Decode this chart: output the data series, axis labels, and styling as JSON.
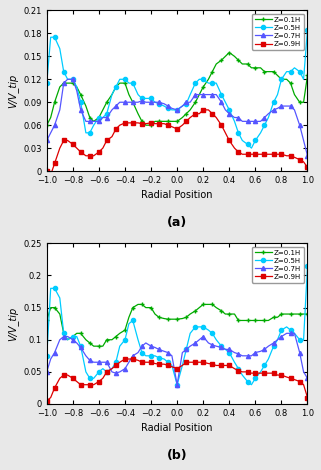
{
  "subplot_a": {
    "title": "(a)",
    "ylabel": "V/V_tip",
    "xlabel": "Radial Position",
    "ylim": [
      0,
      0.21
    ],
    "yticks": [
      0,
      0.03,
      0.06,
      0.09,
      0.12,
      0.15,
      0.18,
      0.21
    ],
    "xlim": [
      -1,
      1
    ],
    "xticks": [
      -1,
      -0.8,
      -0.6,
      -0.4,
      -0.2,
      0,
      0.2,
      0.4,
      0.6,
      0.8,
      1
    ],
    "series": [
      {
        "label": "Z=0.1H",
        "color": "#00aa00",
        "marker": "+",
        "x": [
          -1.0,
          -0.97,
          -0.94,
          -0.9,
          -0.87,
          -0.84,
          -0.8,
          -0.77,
          -0.74,
          -0.7,
          -0.67,
          -0.64,
          -0.6,
          -0.57,
          -0.54,
          -0.5,
          -0.47,
          -0.44,
          -0.4,
          -0.37,
          -0.34,
          -0.3,
          -0.27,
          -0.24,
          -0.2,
          -0.17,
          -0.14,
          -0.1,
          -0.07,
          -0.04,
          0.0,
          0.04,
          0.07,
          0.1,
          0.14,
          0.17,
          0.2,
          0.24,
          0.27,
          0.3,
          0.34,
          0.37,
          0.4,
          0.44,
          0.47,
          0.5,
          0.54,
          0.57,
          0.6,
          0.64,
          0.67,
          0.7,
          0.74,
          0.77,
          0.8,
          0.84,
          0.87,
          0.9,
          0.94,
          0.97,
          1.0
        ],
        "y": [
          0.06,
          0.07,
          0.09,
          0.11,
          0.115,
          0.115,
          0.115,
          0.11,
          0.1,
          0.085,
          0.07,
          0.065,
          0.07,
          0.08,
          0.09,
          0.1,
          0.11,
          0.115,
          0.115,
          0.1,
          0.09,
          0.075,
          0.065,
          0.06,
          0.06,
          0.065,
          0.065,
          0.065,
          0.065,
          0.065,
          0.065,
          0.07,
          0.075,
          0.08,
          0.09,
          0.1,
          0.11,
          0.12,
          0.13,
          0.14,
          0.145,
          0.15,
          0.155,
          0.15,
          0.145,
          0.14,
          0.14,
          0.135,
          0.135,
          0.135,
          0.13,
          0.13,
          0.13,
          0.125,
          0.12,
          0.12,
          0.115,
          0.1,
          0.09,
          0.09,
          0.125
        ]
      },
      {
        "label": "Z=0.5H",
        "color": "#00ccff",
        "marker": "o",
        "x": [
          -1.0,
          -0.97,
          -0.94,
          -0.9,
          -0.87,
          -0.84,
          -0.8,
          -0.77,
          -0.74,
          -0.7,
          -0.67,
          -0.64,
          -0.6,
          -0.57,
          -0.54,
          -0.5,
          -0.47,
          -0.44,
          -0.4,
          -0.37,
          -0.34,
          -0.3,
          -0.27,
          -0.24,
          -0.2,
          -0.17,
          -0.14,
          -0.1,
          -0.07,
          -0.04,
          0.0,
          0.04,
          0.07,
          0.1,
          0.14,
          0.17,
          0.2,
          0.24,
          0.27,
          0.3,
          0.34,
          0.37,
          0.4,
          0.44,
          0.47,
          0.5,
          0.54,
          0.57,
          0.6,
          0.64,
          0.67,
          0.7,
          0.74,
          0.77,
          0.8,
          0.84,
          0.87,
          0.9,
          0.94,
          0.97,
          1.0
        ],
        "y": [
          0.115,
          0.175,
          0.175,
          0.16,
          0.13,
          0.12,
          0.12,
          0.11,
          0.09,
          0.05,
          0.05,
          0.06,
          0.07,
          0.07,
          0.075,
          0.1,
          0.11,
          0.12,
          0.12,
          0.115,
          0.115,
          0.1,
          0.095,
          0.095,
          0.095,
          0.09,
          0.088,
          0.085,
          0.082,
          0.08,
          0.08,
          0.085,
          0.088,
          0.1,
          0.115,
          0.12,
          0.12,
          0.115,
          0.115,
          0.115,
          0.1,
          0.09,
          0.08,
          0.065,
          0.05,
          0.04,
          0.035,
          0.03,
          0.04,
          0.05,
          0.06,
          0.07,
          0.09,
          0.1,
          0.12,
          0.13,
          0.13,
          0.135,
          0.13,
          0.12,
          0.185
        ]
      },
      {
        "label": "Z=0.7H",
        "color": "#5555ff",
        "marker": "^",
        "x": [
          -1.0,
          -0.97,
          -0.94,
          -0.9,
          -0.87,
          -0.84,
          -0.8,
          -0.77,
          -0.74,
          -0.7,
          -0.67,
          -0.64,
          -0.6,
          -0.57,
          -0.54,
          -0.5,
          -0.47,
          -0.44,
          -0.4,
          -0.37,
          -0.34,
          -0.3,
          -0.27,
          -0.24,
          -0.2,
          -0.17,
          -0.14,
          -0.1,
          -0.07,
          -0.04,
          0.0,
          0.04,
          0.07,
          0.1,
          0.14,
          0.17,
          0.2,
          0.24,
          0.27,
          0.3,
          0.34,
          0.37,
          0.4,
          0.44,
          0.47,
          0.5,
          0.54,
          0.57,
          0.6,
          0.64,
          0.67,
          0.7,
          0.74,
          0.77,
          0.8,
          0.84,
          0.87,
          0.9,
          0.94,
          0.97,
          1.0
        ],
        "y": [
          0.04,
          0.05,
          0.06,
          0.08,
          0.115,
          0.12,
          0.12,
          0.105,
          0.08,
          0.065,
          0.065,
          0.065,
          0.065,
          0.07,
          0.07,
          0.08,
          0.085,
          0.09,
          0.09,
          0.09,
          0.09,
          0.09,
          0.092,
          0.09,
          0.09,
          0.09,
          0.09,
          0.088,
          0.085,
          0.082,
          0.08,
          0.085,
          0.09,
          0.09,
          0.1,
          0.1,
          0.1,
          0.1,
          0.1,
          0.1,
          0.09,
          0.08,
          0.075,
          0.07,
          0.07,
          0.065,
          0.065,
          0.065,
          0.065,
          0.065,
          0.07,
          0.075,
          0.08,
          0.082,
          0.085,
          0.085,
          0.085,
          0.08,
          0.06,
          0.04,
          0.02
        ]
      },
      {
        "label": "Z=0.9H",
        "color": "#dd0000",
        "marker": "s",
        "x": [
          -1.0,
          -0.97,
          -0.94,
          -0.9,
          -0.87,
          -0.84,
          -0.8,
          -0.77,
          -0.74,
          -0.7,
          -0.67,
          -0.64,
          -0.6,
          -0.57,
          -0.54,
          -0.5,
          -0.47,
          -0.44,
          -0.4,
          -0.37,
          -0.34,
          -0.3,
          -0.27,
          -0.24,
          -0.2,
          -0.17,
          -0.14,
          -0.1,
          -0.07,
          -0.04,
          0.0,
          0.04,
          0.07,
          0.1,
          0.14,
          0.17,
          0.2,
          0.24,
          0.27,
          0.3,
          0.34,
          0.37,
          0.4,
          0.44,
          0.47,
          0.5,
          0.54,
          0.57,
          0.6,
          0.64,
          0.67,
          0.7,
          0.74,
          0.77,
          0.8,
          0.84,
          0.87,
          0.9,
          0.94,
          0.97,
          1.0
        ],
        "y": [
          0.0,
          -0.005,
          0.01,
          0.03,
          0.04,
          0.04,
          0.035,
          0.03,
          0.025,
          0.02,
          0.02,
          0.02,
          0.025,
          0.03,
          0.04,
          0.045,
          0.055,
          0.06,
          0.063,
          0.063,
          0.063,
          0.063,
          0.062,
          0.062,
          0.063,
          0.062,
          0.062,
          0.062,
          0.06,
          0.058,
          0.055,
          0.06,
          0.065,
          0.07,
          0.075,
          0.075,
          0.08,
          0.08,
          0.075,
          0.07,
          0.06,
          0.05,
          0.04,
          0.03,
          0.025,
          0.022,
          0.022,
          0.022,
          0.022,
          0.022,
          0.022,
          0.022,
          0.022,
          0.022,
          0.022,
          0.02,
          0.02,
          0.018,
          0.015,
          0.012,
          0.005
        ]
      }
    ]
  },
  "subplot_b": {
    "title": "(b)",
    "ylabel": "V/V_tip",
    "xlabel": "Radial Position",
    "ylim": [
      0,
      0.25
    ],
    "yticks": [
      0,
      0.05,
      0.1,
      0.15,
      0.2,
      0.25
    ],
    "xlim": [
      -1,
      1
    ],
    "xticks": [
      -1,
      -0.8,
      -0.6,
      -0.4,
      -0.2,
      0,
      0.2,
      0.4,
      0.6,
      0.8,
      1
    ],
    "series": [
      {
        "label": "Z=0.1H",
        "color": "#00aa00",
        "marker": "+",
        "x": [
          -1.0,
          -0.97,
          -0.94,
          -0.9,
          -0.87,
          -0.84,
          -0.8,
          -0.77,
          -0.74,
          -0.7,
          -0.67,
          -0.64,
          -0.6,
          -0.57,
          -0.54,
          -0.5,
          -0.47,
          -0.44,
          -0.4,
          -0.37,
          -0.34,
          -0.3,
          -0.27,
          -0.24,
          -0.2,
          -0.17,
          -0.14,
          -0.1,
          -0.07,
          -0.04,
          0.0,
          0.04,
          0.07,
          0.1,
          0.14,
          0.17,
          0.2,
          0.24,
          0.27,
          0.3,
          0.34,
          0.37,
          0.4,
          0.44,
          0.47,
          0.5,
          0.54,
          0.57,
          0.6,
          0.64,
          0.67,
          0.7,
          0.74,
          0.77,
          0.8,
          0.84,
          0.87,
          0.9,
          0.94,
          0.97,
          1.0
        ],
        "y": [
          0.13,
          0.15,
          0.15,
          0.14,
          0.11,
          0.1,
          0.105,
          0.11,
          0.11,
          0.1,
          0.095,
          0.09,
          0.09,
          0.09,
          0.1,
          0.1,
          0.105,
          0.11,
          0.115,
          0.135,
          0.15,
          0.155,
          0.155,
          0.15,
          0.15,
          0.14,
          0.135,
          0.133,
          0.132,
          0.132,
          0.132,
          0.133,
          0.135,
          0.14,
          0.145,
          0.15,
          0.155,
          0.155,
          0.155,
          0.15,
          0.145,
          0.14,
          0.14,
          0.14,
          0.13,
          0.13,
          0.13,
          0.13,
          0.13,
          0.13,
          0.13,
          0.13,
          0.135,
          0.135,
          0.14,
          0.14,
          0.14,
          0.14,
          0.14,
          0.14,
          0.14
        ]
      },
      {
        "label": "Z=0.5H",
        "color": "#00ccff",
        "marker": "o",
        "x": [
          -1.0,
          -0.97,
          -0.94,
          -0.9,
          -0.87,
          -0.84,
          -0.8,
          -0.77,
          -0.74,
          -0.7,
          -0.67,
          -0.64,
          -0.6,
          -0.57,
          -0.54,
          -0.5,
          -0.47,
          -0.44,
          -0.4,
          -0.37,
          -0.34,
          -0.3,
          -0.27,
          -0.24,
          -0.2,
          -0.17,
          -0.14,
          -0.1,
          -0.07,
          -0.04,
          0.0,
          0.04,
          0.07,
          0.1,
          0.14,
          0.17,
          0.2,
          0.24,
          0.27,
          0.3,
          0.34,
          0.37,
          0.4,
          0.44,
          0.47,
          0.5,
          0.54,
          0.57,
          0.6,
          0.64,
          0.67,
          0.7,
          0.74,
          0.77,
          0.8,
          0.84,
          0.87,
          0.9,
          0.94,
          0.97,
          1.0
        ],
        "y": [
          0.075,
          0.18,
          0.18,
          0.165,
          0.11,
          0.1,
          0.105,
          0.105,
          0.09,
          0.05,
          0.04,
          0.04,
          0.05,
          0.055,
          0.05,
          0.055,
          0.065,
          0.09,
          0.1,
          0.125,
          0.13,
          0.1,
          0.08,
          0.075,
          0.075,
          0.075,
          0.072,
          0.07,
          0.065,
          0.06,
          0.03,
          0.06,
          0.085,
          0.11,
          0.12,
          0.12,
          0.12,
          0.115,
          0.11,
          0.1,
          0.09,
          0.085,
          0.08,
          0.065,
          0.055,
          0.045,
          0.035,
          0.03,
          0.04,
          0.05,
          0.06,
          0.07,
          0.09,
          0.1,
          0.115,
          0.12,
          0.115,
          0.11,
          0.1,
          0.1,
          0.215
        ]
      },
      {
        "label": "Z=0.7H",
        "color": "#5555ff",
        "marker": "^",
        "x": [
          -1.0,
          -0.97,
          -0.94,
          -0.9,
          -0.87,
          -0.84,
          -0.8,
          -0.77,
          -0.74,
          -0.7,
          -0.67,
          -0.64,
          -0.6,
          -0.57,
          -0.54,
          -0.5,
          -0.47,
          -0.44,
          -0.4,
          -0.37,
          -0.34,
          -0.3,
          -0.27,
          -0.24,
          -0.2,
          -0.17,
          -0.14,
          -0.1,
          -0.07,
          -0.04,
          0.0,
          0.04,
          0.07,
          0.1,
          0.14,
          0.17,
          0.2,
          0.24,
          0.27,
          0.3,
          0.34,
          0.37,
          0.4,
          0.44,
          0.47,
          0.5,
          0.54,
          0.57,
          0.6,
          0.64,
          0.67,
          0.7,
          0.74,
          0.77,
          0.8,
          0.84,
          0.87,
          0.9,
          0.94,
          0.97,
          1.0
        ],
        "y": [
          0.05,
          0.07,
          0.08,
          0.1,
          0.105,
          0.105,
          0.1,
          0.095,
          0.088,
          0.075,
          0.068,
          0.065,
          0.065,
          0.065,
          0.065,
          0.05,
          0.048,
          0.05,
          0.055,
          0.065,
          0.075,
          0.08,
          0.09,
          0.095,
          0.09,
          0.088,
          0.085,
          0.082,
          0.08,
          0.075,
          0.03,
          0.08,
          0.085,
          0.09,
          0.095,
          0.1,
          0.105,
          0.095,
          0.092,
          0.09,
          0.088,
          0.085,
          0.085,
          0.08,
          0.078,
          0.075,
          0.075,
          0.075,
          0.08,
          0.082,
          0.085,
          0.09,
          0.095,
          0.1,
          0.105,
          0.11,
          0.11,
          0.11,
          0.08,
          0.05,
          0.04
        ]
      },
      {
        "label": "Z=0.9H",
        "color": "#dd0000",
        "marker": "s",
        "x": [
          -1.0,
          -0.97,
          -0.94,
          -0.9,
          -0.87,
          -0.84,
          -0.8,
          -0.77,
          -0.74,
          -0.7,
          -0.67,
          -0.64,
          -0.6,
          -0.57,
          -0.54,
          -0.5,
          -0.47,
          -0.44,
          -0.4,
          -0.37,
          -0.34,
          -0.3,
          -0.27,
          -0.24,
          -0.2,
          -0.17,
          -0.14,
          -0.1,
          -0.07,
          -0.04,
          0.0,
          0.04,
          0.07,
          0.1,
          0.14,
          0.17,
          0.2,
          0.24,
          0.27,
          0.3,
          0.34,
          0.37,
          0.4,
          0.44,
          0.47,
          0.5,
          0.54,
          0.57,
          0.6,
          0.64,
          0.67,
          0.7,
          0.74,
          0.77,
          0.8,
          0.84,
          0.87,
          0.9,
          0.94,
          0.97,
          1.0
        ],
        "y": [
          0.005,
          0.01,
          0.025,
          0.04,
          0.045,
          0.045,
          0.04,
          0.035,
          0.03,
          0.03,
          0.03,
          0.03,
          0.035,
          0.04,
          0.05,
          0.055,
          0.06,
          0.065,
          0.07,
          0.07,
          0.07,
          0.068,
          0.065,
          0.065,
          0.065,
          0.063,
          0.062,
          0.062,
          0.06,
          0.058,
          0.055,
          0.06,
          0.065,
          0.065,
          0.065,
          0.065,
          0.065,
          0.063,
          0.062,
          0.06,
          0.06,
          0.06,
          0.06,
          0.055,
          0.052,
          0.05,
          0.05,
          0.048,
          0.048,
          0.048,
          0.048,
          0.048,
          0.048,
          0.045,
          0.045,
          0.042,
          0.04,
          0.038,
          0.035,
          0.03,
          0.01
        ]
      }
    ]
  },
  "figure_bg": "#e8e8e8",
  "axes_bg": "#ffffff",
  "legend_labels": [
    "Z=0.1H",
    "Z=0.5H",
    "Z=0.7H",
    "Z=0.9H"
  ]
}
